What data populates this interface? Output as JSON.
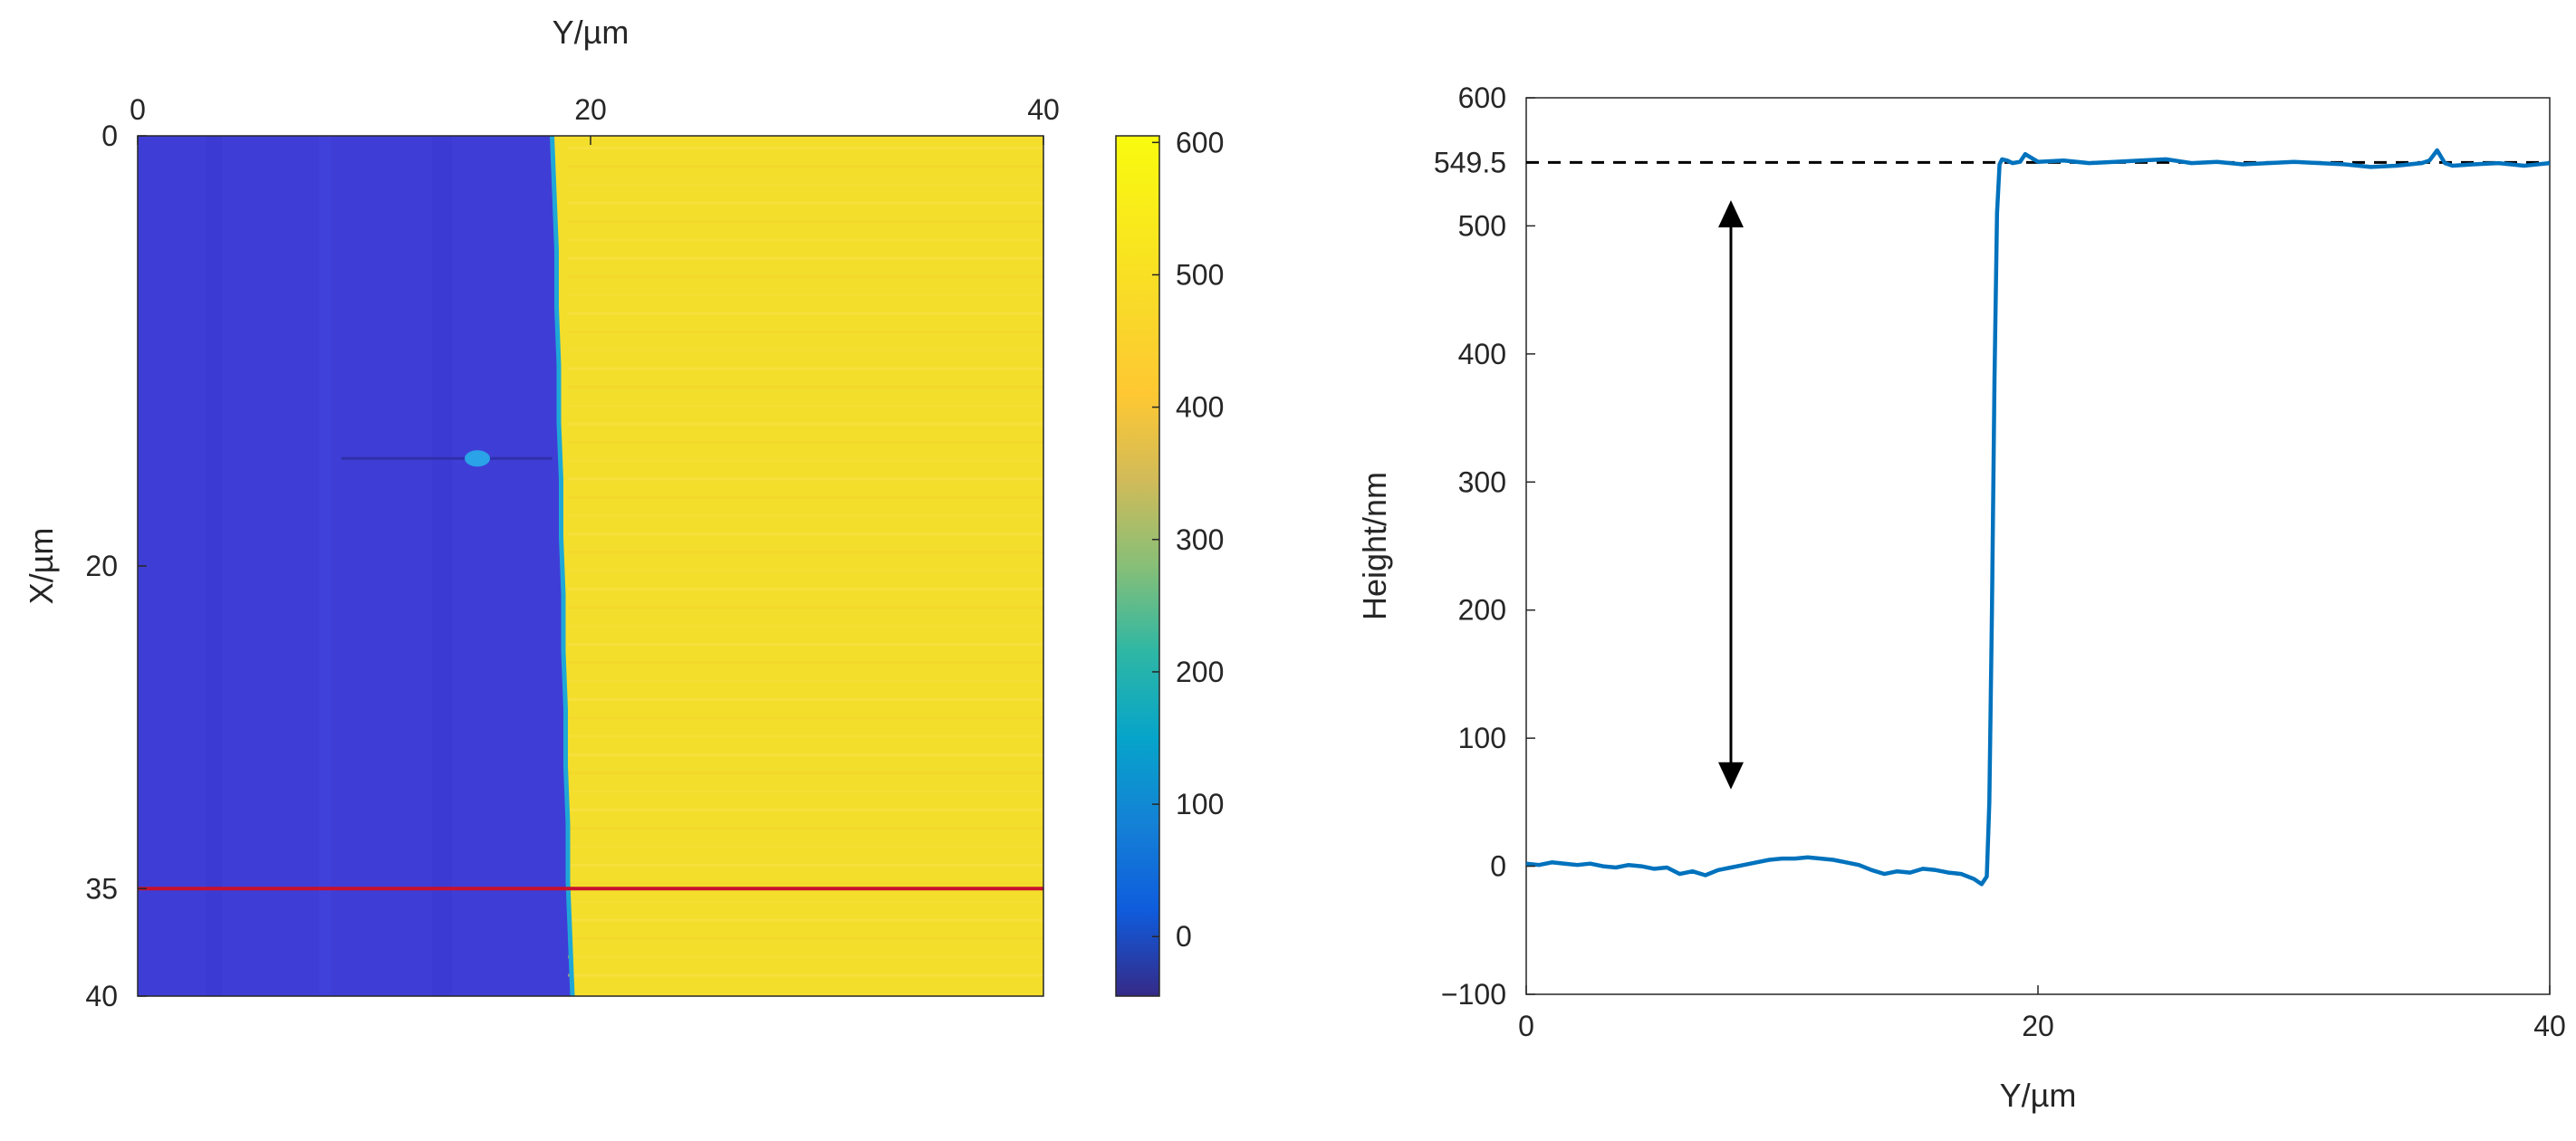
{
  "chart_data": [
    {
      "type": "heatmap",
      "xlabel": "Y/µm",
      "ylabel": "X/µm",
      "xlim": [
        0,
        40
      ],
      "ylim": [
        0,
        40
      ],
      "x_ticks": [
        "0",
        "20",
        "40"
      ],
      "y_ticks": [
        "0",
        "20",
        "35",
        "40"
      ],
      "y_axis_reversed": true,
      "x_axis_position": "top",
      "boundary_y_um": [
        18.3,
        18.4,
        18.5,
        18.5,
        18.6,
        18.6,
        18.7,
        18.7,
        18.8,
        18.8,
        18.9,
        18.9,
        19.0,
        19.0,
        19.1,
        19.2
      ],
      "low_value_nm": 0,
      "high_value_nm": 549.5,
      "cut_line_x_um": 35,
      "cut_line_color": "#c8102e",
      "defect": {
        "y_um": 15,
        "x_um": 15
      },
      "colormap": "parula",
      "colorbar": {
        "ticks": [
          "0",
          "100",
          "200",
          "300",
          "400",
          "500",
          "600"
        ],
        "range": [
          -45,
          605
        ]
      }
    },
    {
      "type": "line",
      "xlabel": "Y/µm",
      "ylabel": "Height/nm",
      "xlim": [
        0,
        40
      ],
      "ylim": [
        -100,
        600
      ],
      "x_ticks": [
        "0",
        "20",
        "40"
      ],
      "y_ticks": [
        "−100",
        "0",
        "100",
        "200",
        "300",
        "400",
        "500",
        "600"
      ],
      "reference_line": {
        "value": 549.5,
        "label": "549.5",
        "style": "dashed",
        "color": "#000000"
      },
      "arrow": {
        "x": 8.0,
        "y_from": 60,
        "y_to": 520,
        "color": "#000000"
      },
      "series": [
        {
          "color": "#0072bd",
          "x": [
            0,
            0.5,
            1,
            1.5,
            2,
            2.5,
            3,
            3.5,
            4,
            4.5,
            5,
            5.5,
            6,
            6.5,
            7,
            7.5,
            8,
            8.5,
            9,
            9.5,
            10,
            10.5,
            11,
            11.5,
            12,
            12.5,
            13,
            13.5,
            14,
            14.5,
            15,
            15.5,
            16,
            16.5,
            17,
            17.5,
            17.8,
            18.0,
            18.1,
            18.2,
            18.3,
            18.4,
            18.5,
            18.6,
            18.8,
            19.0,
            19.3,
            19.5,
            20,
            21,
            22,
            23,
            24,
            25,
            26,
            27,
            28,
            29,
            30,
            31,
            32,
            33,
            34,
            35,
            35.3,
            35.6,
            35.9,
            36.2,
            37,
            38,
            39,
            40
          ],
          "y": [
            2,
            1,
            3,
            2,
            1,
            2,
            0,
            -1,
            1,
            0,
            -2,
            -1,
            -6,
            -4,
            -7,
            -3,
            -1,
            1,
            3,
            5,
            6,
            6,
            7,
            6,
            5,
            3,
            1,
            -3,
            -6,
            -4,
            -5,
            -2,
            -3,
            -5,
            -6,
            -10,
            -14,
            -8,
            50,
            200,
            380,
            510,
            548,
            552,
            551,
            549,
            550,
            556,
            550,
            551,
            549,
            550,
            551,
            552,
            549,
            550,
            548,
            549,
            550,
            549,
            548,
            546,
            547,
            549,
            551,
            559,
            549,
            547,
            548,
            549,
            547,
            549
          ]
        }
      ]
    }
  ]
}
